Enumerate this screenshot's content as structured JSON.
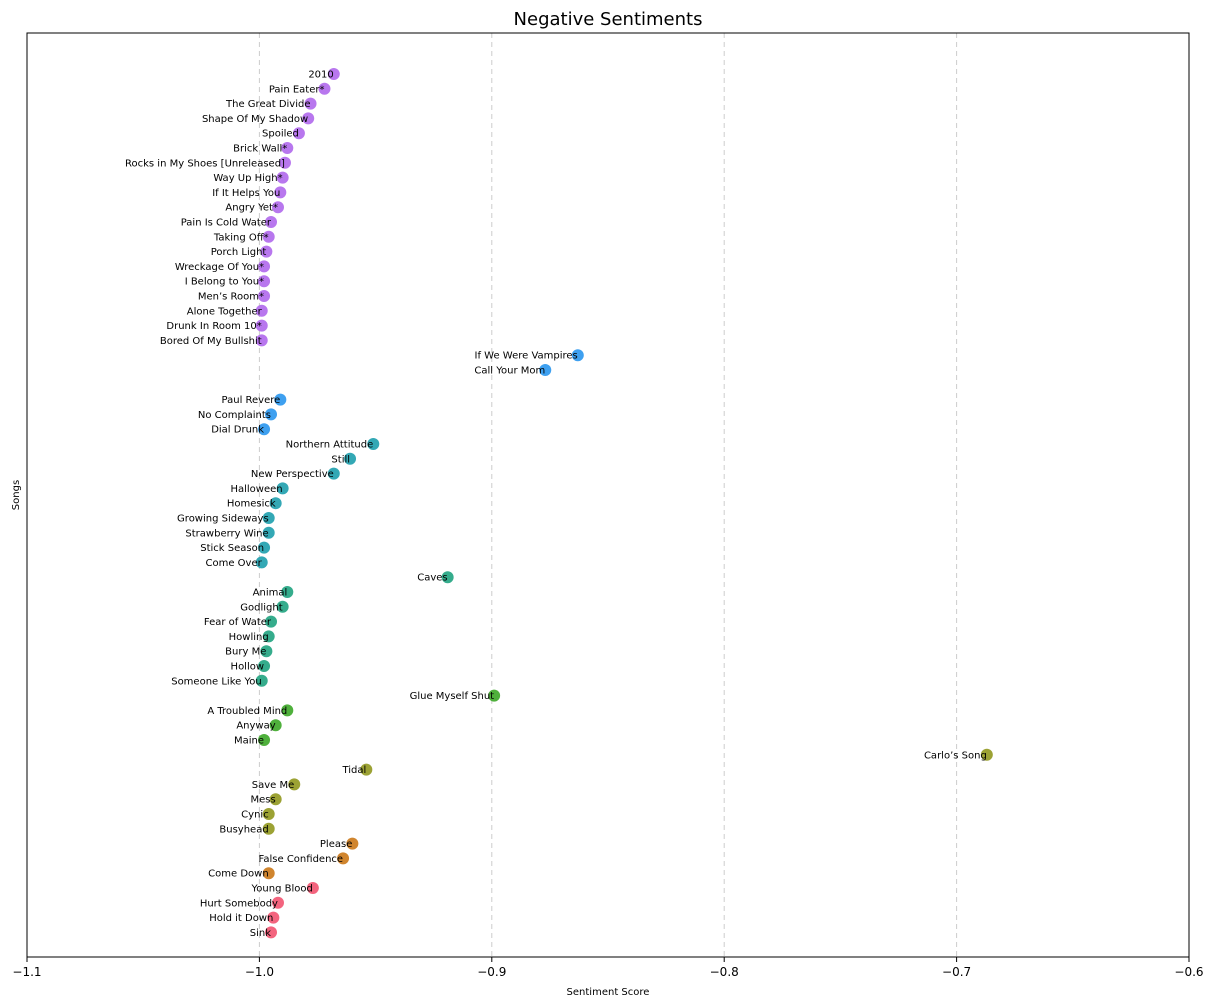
{
  "chart_data": {
    "type": "scatter",
    "title": "Negative Sentiments",
    "xlabel": "Sentiment Score",
    "ylabel": "Songs",
    "xlim": [
      -1.1,
      -0.6
    ],
    "xticks": [
      -1.1,
      -1.0,
      -0.9,
      -0.8,
      -0.7,
      -0.6
    ],
    "xtick_labels": [
      "−1.1",
      "−1.0",
      "−0.9",
      "−0.8",
      "−0.7",
      "−0.6"
    ],
    "grid": "x-dashed",
    "points": [
      {
        "label": "2010",
        "x": -0.968,
        "color": "#b877ee"
      },
      {
        "label": "Pain Eater*",
        "x": -0.972,
        "color": "#b877ee"
      },
      {
        "label": "The Great Divide",
        "x": -0.978,
        "color": "#b877ee"
      },
      {
        "label": "Shape Of My Shadow",
        "x": -0.979,
        "color": "#b877ee"
      },
      {
        "label": "Spoiled",
        "x": -0.983,
        "color": "#b877ee"
      },
      {
        "label": "Brick Wall*",
        "x": -0.988,
        "color": "#b877ee"
      },
      {
        "label": "Rocks in My Shoes [Unreleased]",
        "x": -0.989,
        "color": "#b877ee"
      },
      {
        "label": "Way Up High*",
        "x": -0.99,
        "color": "#b877ee"
      },
      {
        "label": "If It Helps You",
        "x": -0.991,
        "color": "#b877ee"
      },
      {
        "label": "Angry Yet*",
        "x": -0.992,
        "color": "#b877ee"
      },
      {
        "label": "Pain Is Cold Water",
        "x": -0.995,
        "color": "#b877ee"
      },
      {
        "label": "Taking Off*",
        "x": -0.996,
        "color": "#b877ee"
      },
      {
        "label": "Porch Light",
        "x": -0.997,
        "color": "#b877ee"
      },
      {
        "label": "Wreckage Of You*",
        "x": -0.998,
        "color": "#b877ee"
      },
      {
        "label": "I Belong to You*",
        "x": -0.998,
        "color": "#b877ee"
      },
      {
        "label": "Men’s Room*",
        "x": -0.998,
        "color": "#b877ee"
      },
      {
        "label": "Alone Together",
        "x": -0.999,
        "color": "#b877ee"
      },
      {
        "label": "Drunk In Room 10*",
        "x": -0.999,
        "color": "#b877ee"
      },
      {
        "label": "Bored Of My Bullshit",
        "x": -0.999,
        "color": "#b877ee"
      },
      {
        "label": "If We Were Vampires",
        "x": -0.863,
        "color": "#3ea0f0"
      },
      {
        "label": "Call Your Mom",
        "x": -0.877,
        "color": "#3ea0f0"
      },
      {
        "label": "",
        "x": null,
        "color": "#3ea0f0"
      },
      {
        "label": "Paul Revere",
        "x": -0.991,
        "color": "#3ea0f0"
      },
      {
        "label": "No Complaints",
        "x": -0.995,
        "color": "#3ea0f0"
      },
      {
        "label": "Dial Drunk",
        "x": -0.998,
        "color": "#3ea0f0"
      },
      {
        "label": "Northern Attitude",
        "x": -0.951,
        "color": "#33a8b5"
      },
      {
        "label": "Still",
        "x": -0.961,
        "color": "#33a8b5"
      },
      {
        "label": "New Perspective",
        "x": -0.968,
        "color": "#33a8b5"
      },
      {
        "label": "Halloween",
        "x": -0.99,
        "color": "#33a8b5"
      },
      {
        "label": "Homesick",
        "x": -0.993,
        "color": "#33a8b5"
      },
      {
        "label": "Growing Sideways",
        "x": -0.996,
        "color": "#33a8b5"
      },
      {
        "label": "Strawberry Wine",
        "x": -0.996,
        "color": "#33a8b5"
      },
      {
        "label": "Stick Season",
        "x": -0.998,
        "color": "#33a8b5"
      },
      {
        "label": "Come Over",
        "x": -0.999,
        "color": "#33a8b5"
      },
      {
        "label": "Caves",
        "x": -0.919,
        "color": "#35ac8c"
      },
      {
        "label": "Animal",
        "x": -0.988,
        "color": "#35ac8c"
      },
      {
        "label": "Godlight",
        "x": -0.99,
        "color": "#35ac8c"
      },
      {
        "label": "Fear of Water",
        "x": -0.995,
        "color": "#35ac8c"
      },
      {
        "label": "Howling",
        "x": -0.996,
        "color": "#35ac8c"
      },
      {
        "label": "Bury Me",
        "x": -0.997,
        "color": "#35ac8c"
      },
      {
        "label": "Hollow",
        "x": -0.998,
        "color": "#35ac8c"
      },
      {
        "label": "Someone Like You",
        "x": -0.999,
        "color": "#35ac8c"
      },
      {
        "label": "Glue Myself Shut",
        "x": -0.899,
        "color": "#4fb03c"
      },
      {
        "label": "A Troubled Mind",
        "x": -0.988,
        "color": "#4fb03c"
      },
      {
        "label": "Anyway",
        "x": -0.993,
        "color": "#4fb03c"
      },
      {
        "label": "Maine",
        "x": -0.998,
        "color": "#4fb03c"
      },
      {
        "label": "Carlo’s Song",
        "x": -0.687,
        "color": "#9ca234"
      },
      {
        "label": "Tidal",
        "x": -0.954,
        "color": "#9ca234"
      },
      {
        "label": "Save Me",
        "x": -0.985,
        "color": "#9ca234"
      },
      {
        "label": "Mess",
        "x": -0.993,
        "color": "#9ca234"
      },
      {
        "label": "Cynic",
        "x": -0.996,
        "color": "#9ca234"
      },
      {
        "label": "Busyhead",
        "x": -0.996,
        "color": "#9ca234"
      },
      {
        "label": "Please",
        "x": -0.96,
        "color": "#d0852e"
      },
      {
        "label": "False Confidence",
        "x": -0.964,
        "color": "#d0852e"
      },
      {
        "label": "Come Down",
        "x": -0.996,
        "color": "#d0852e"
      },
      {
        "label": "Young Blood",
        "x": -0.977,
        "color": "#f3647e"
      },
      {
        "label": "Hurt Somebody",
        "x": -0.992,
        "color": "#f3647e"
      },
      {
        "label": "Hold it Down",
        "x": -0.994,
        "color": "#f3647e"
      },
      {
        "label": "Sink",
        "x": -0.995,
        "color": "#f3647e"
      }
    ]
  }
}
